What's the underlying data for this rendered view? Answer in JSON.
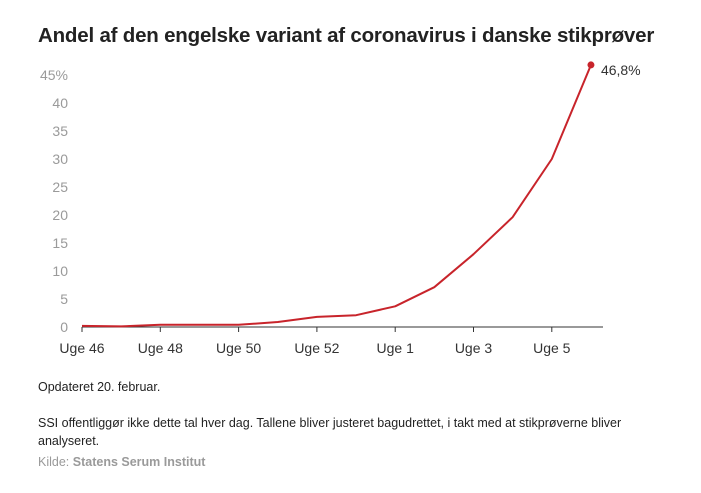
{
  "title": "Andel af den engelske variant af coronavirus i danske stikprøver",
  "notes": {
    "updated": "Opdateret 20. februar.",
    "description": "SSI offentliggør ikke dette tal hver dag. Tallene bliver justeret bagudrettet, i takt med at stikprøverne bliver analyseret."
  },
  "source": {
    "prefix": "Kilde:",
    "name": "Statens Serum Institut"
  },
  "chart_data": {
    "type": "line",
    "title": "Andel af den engelske variant af coronavirus i danske stikprøver",
    "xlabel": "",
    "ylabel": "",
    "ylim": [
      0,
      45
    ],
    "y_ticks": [
      0,
      5,
      10,
      15,
      20,
      25,
      30,
      35,
      40,
      45
    ],
    "y_tick_labels": [
      "0",
      "5",
      "10",
      "15",
      "20",
      "25",
      "30",
      "35",
      "40",
      "45%"
    ],
    "x_ticks": [
      "Uge 46",
      "Uge 48",
      "Uge 50",
      "Uge 52",
      "Uge 1",
      "Uge 3",
      "Uge 5"
    ],
    "x": [
      "Uge 46",
      "Uge 47",
      "Uge 48",
      "Uge 49",
      "Uge 50",
      "Uge 51",
      "Uge 52",
      "Uge 53",
      "Uge 1",
      "Uge 2",
      "Uge 3",
      "Uge 4",
      "Uge 5",
      "Uge 6"
    ],
    "series": [
      {
        "color": "#c8242b",
        "values": [
          0.2,
          0.1,
          0.4,
          0.4,
          0.4,
          0.9,
          1.8,
          2.1,
          3.7,
          7.1,
          13.0,
          19.6,
          30.0,
          46.8
        ]
      }
    ],
    "end_label": "46,8%",
    "grid": false,
    "colors": {
      "line": "#c8242b",
      "axis": "#333333",
      "tick_text": "#9a9a9a"
    }
  }
}
